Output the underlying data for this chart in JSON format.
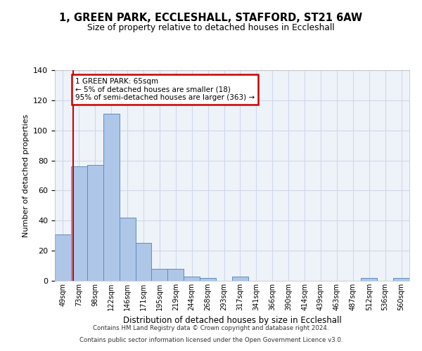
{
  "title_line1": "1, GREEN PARK, ECCLESHALL, STAFFORD, ST21 6AW",
  "title_line2": "Size of property relative to detached houses in Eccleshall",
  "xlabel": "Distribution of detached houses by size in Eccleshall",
  "ylabel": "Number of detached properties",
  "bar_values": [
    31,
    76,
    77,
    111,
    42,
    25,
    8,
    8,
    3,
    2,
    0,
    3,
    0,
    0,
    0,
    0,
    0,
    0,
    0,
    2,
    0,
    2
  ],
  "bin_labels": [
    "49sqm",
    "73sqm",
    "98sqm",
    "122sqm",
    "146sqm",
    "171sqm",
    "195sqm",
    "219sqm",
    "244sqm",
    "268sqm",
    "293sqm",
    "317sqm",
    "341sqm",
    "366sqm",
    "390sqm",
    "414sqm",
    "439sqm",
    "463sqm",
    "487sqm",
    "512sqm",
    "536sqm",
    "560sqm"
  ],
  "bar_color": "#aec6e8",
  "bar_edge_color": "#5a8fc0",
  "background_color": "#eef2f9",
  "grid_color": "#d0d8e8",
  "ylim": [
    0,
    140
  ],
  "yticks": [
    0,
    20,
    40,
    60,
    80,
    100,
    120,
    140
  ],
  "annotation_line1": "1 GREEN PARK: 65sqm",
  "annotation_line2": "← 5% of detached houses are smaller (18)",
  "annotation_line3": "95% of semi-detached houses are larger (363) →",
  "red_line_x": 0.62,
  "footer_line1": "Contains HM Land Registry data © Crown copyright and database right 2024.",
  "footer_line2": "Contains public sector information licensed under the Open Government Licence v3.0.",
  "annotation_box_color": "#ffffff",
  "annotation_box_edge_color": "#cc0000",
  "red_line_color": "#cc0000"
}
